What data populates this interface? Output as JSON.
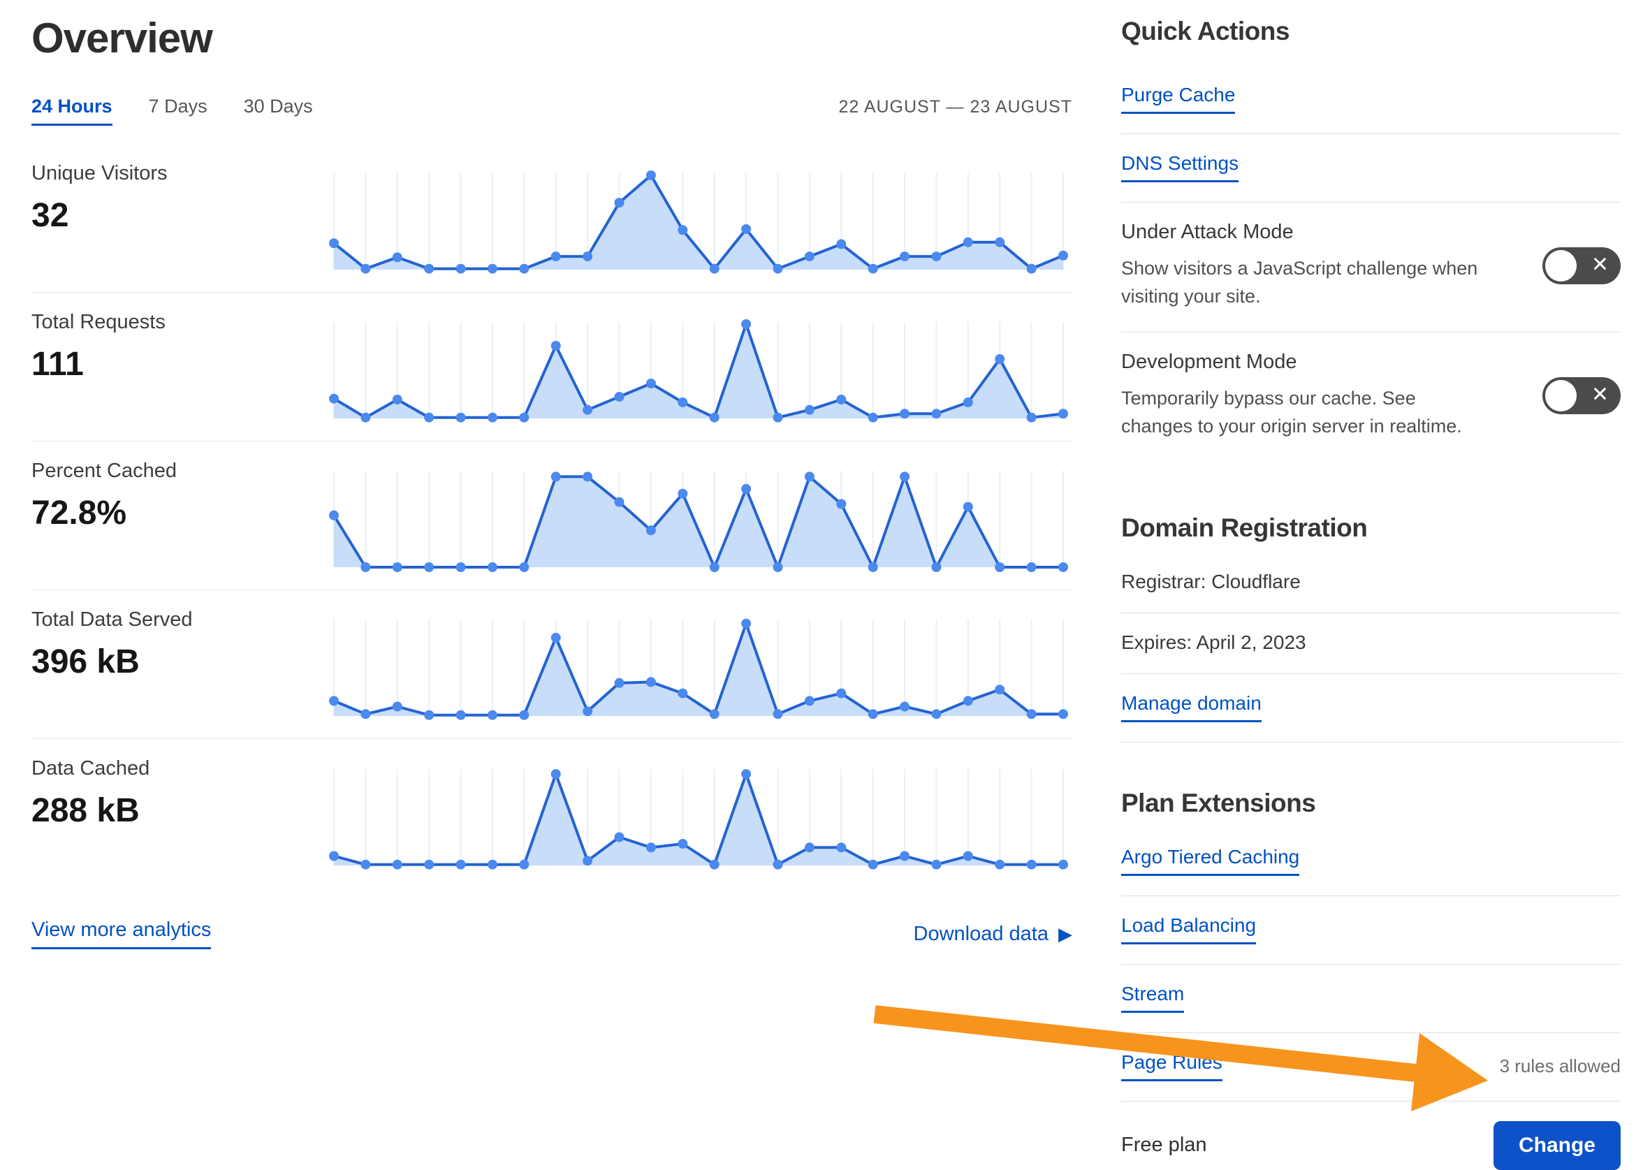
{
  "page": {
    "title": "Overview"
  },
  "tabs": [
    {
      "label": "24 Hours",
      "active": true
    },
    {
      "label": "7 Days",
      "active": false
    },
    {
      "label": "30 Days",
      "active": false
    }
  ],
  "date_range": "22 AUGUST — 23 AUGUST",
  "metrics": [
    {
      "label": "Unique Visitors",
      "value": "32"
    },
    {
      "label": "Total Requests",
      "value": "111"
    },
    {
      "label": "Percent Cached",
      "value": "72.8%"
    },
    {
      "label": "Total Data Served",
      "value": "396 kB"
    },
    {
      "label": "Data Cached",
      "value": "288 kB"
    }
  ],
  "links": {
    "view_more": "View more analytics",
    "download": "Download data"
  },
  "icons": {
    "download_arrow": "▶",
    "toggle_off": "✕"
  },
  "quick_actions": {
    "heading": "Quick Actions",
    "links": [
      "Purge Cache",
      "DNS Settings"
    ],
    "toggles": [
      {
        "title": "Under Attack Mode",
        "description": "Show visitors a JavaScript challenge when visiting your site.",
        "state": "off",
        "icon": "x-icon"
      },
      {
        "title": "Development Mode",
        "description": "Temporarily bypass our cache. See changes to your origin server in realtime.",
        "state": "off",
        "icon": "x-icon"
      }
    ]
  },
  "domain_registration": {
    "heading": "Domain Registration",
    "registrar": "Registrar: Cloudflare",
    "expires": "Expires: April 2, 2023",
    "manage": "Manage domain"
  },
  "plan_extensions": {
    "heading": "Plan Extensions",
    "links": [
      "Argo Tiered Caching",
      "Load Balancing",
      "Stream",
      "Page Rules"
    ],
    "page_rules_note": "3 rules allowed"
  },
  "plan": {
    "label": "Free plan",
    "button": "Change"
  },
  "colors": {
    "link_blue": "#0051c3",
    "button_blue": "#0d52c8",
    "chart_line": "#2463d1",
    "chart_dot": "#4b89ef",
    "chart_fill": "#c8ddf9",
    "gridline": "#e8effa",
    "toggle_bg": "#4b4b4b",
    "arrow_orange": "#f7941d"
  },
  "chart_data": [
    {
      "type": "area",
      "title": "Unique Visitors",
      "total_label": "32",
      "x_unit": "hour over 22–23 August (24 points)",
      "y_unit": "relative height 0–10 (no axis shown)",
      "values": [
        2.8,
        0.1,
        1.3,
        0.1,
        0.1,
        0.1,
        0.1,
        1.4,
        1.4,
        7.1,
        10,
        4.2,
        0.1,
        4.3,
        0.1,
        1.4,
        2.7,
        0.1,
        1.4,
        1.4,
        2.9,
        2.9,
        0.1,
        1.5
      ]
    },
    {
      "type": "area",
      "title": "Total Requests",
      "total_label": "111",
      "x_unit": "hour over 22–23 August (24 points)",
      "y_unit": "relative height 0–10 (no axis shown)",
      "values": [
        2.1,
        0.1,
        2.0,
        0.1,
        0.1,
        0.1,
        0.1,
        7.7,
        0.9,
        2.3,
        3.7,
        1.7,
        0.1,
        10,
        0.1,
        0.9,
        2.0,
        0.1,
        0.5,
        0.5,
        1.7,
        6.3,
        0.1,
        0.5
      ]
    },
    {
      "type": "area",
      "title": "Percent Cached",
      "total_label": "72.8%",
      "x_unit": "hour over 22–23 August (24 points)",
      "y_unit": "relative height 0–10 (no axis shown)",
      "values": [
        5.5,
        0,
        0,
        0,
        0,
        0,
        0,
        9.6,
        9.6,
        6.9,
        3.9,
        7.8,
        0,
        8.3,
        0,
        9.6,
        6.7,
        0,
        9.6,
        0,
        6.4,
        0,
        0,
        0
      ]
    },
    {
      "type": "area",
      "title": "Total Data Served",
      "total_label": "396 kB",
      "x_unit": "hour over 22–23 August (24 points)",
      "y_unit": "relative height 0–10 (no axis shown)",
      "values": [
        1.6,
        0.2,
        1.0,
        0.1,
        0.1,
        0.1,
        0.1,
        8.3,
        0.5,
        3.5,
        3.6,
        2.4,
        0.2,
        9.8,
        0.2,
        1.6,
        2.4,
        0.2,
        1.0,
        0.2,
        1.6,
        2.8,
        0.2,
        0.2
      ]
    },
    {
      "type": "area",
      "title": "Data Cached",
      "total_label": "288 kB",
      "x_unit": "hour over 22–23 August (24 points)",
      "y_unit": "relative height 0–10 (no axis shown)",
      "values": [
        1.0,
        0.1,
        0.1,
        0.1,
        0.1,
        0.1,
        0.1,
        9.7,
        0.5,
        3.0,
        1.9,
        2.3,
        0.1,
        9.7,
        0.1,
        1.9,
        1.9,
        0.1,
        1.0,
        0.1,
        1.0,
        0.1,
        0.1,
        0.1
      ]
    }
  ]
}
